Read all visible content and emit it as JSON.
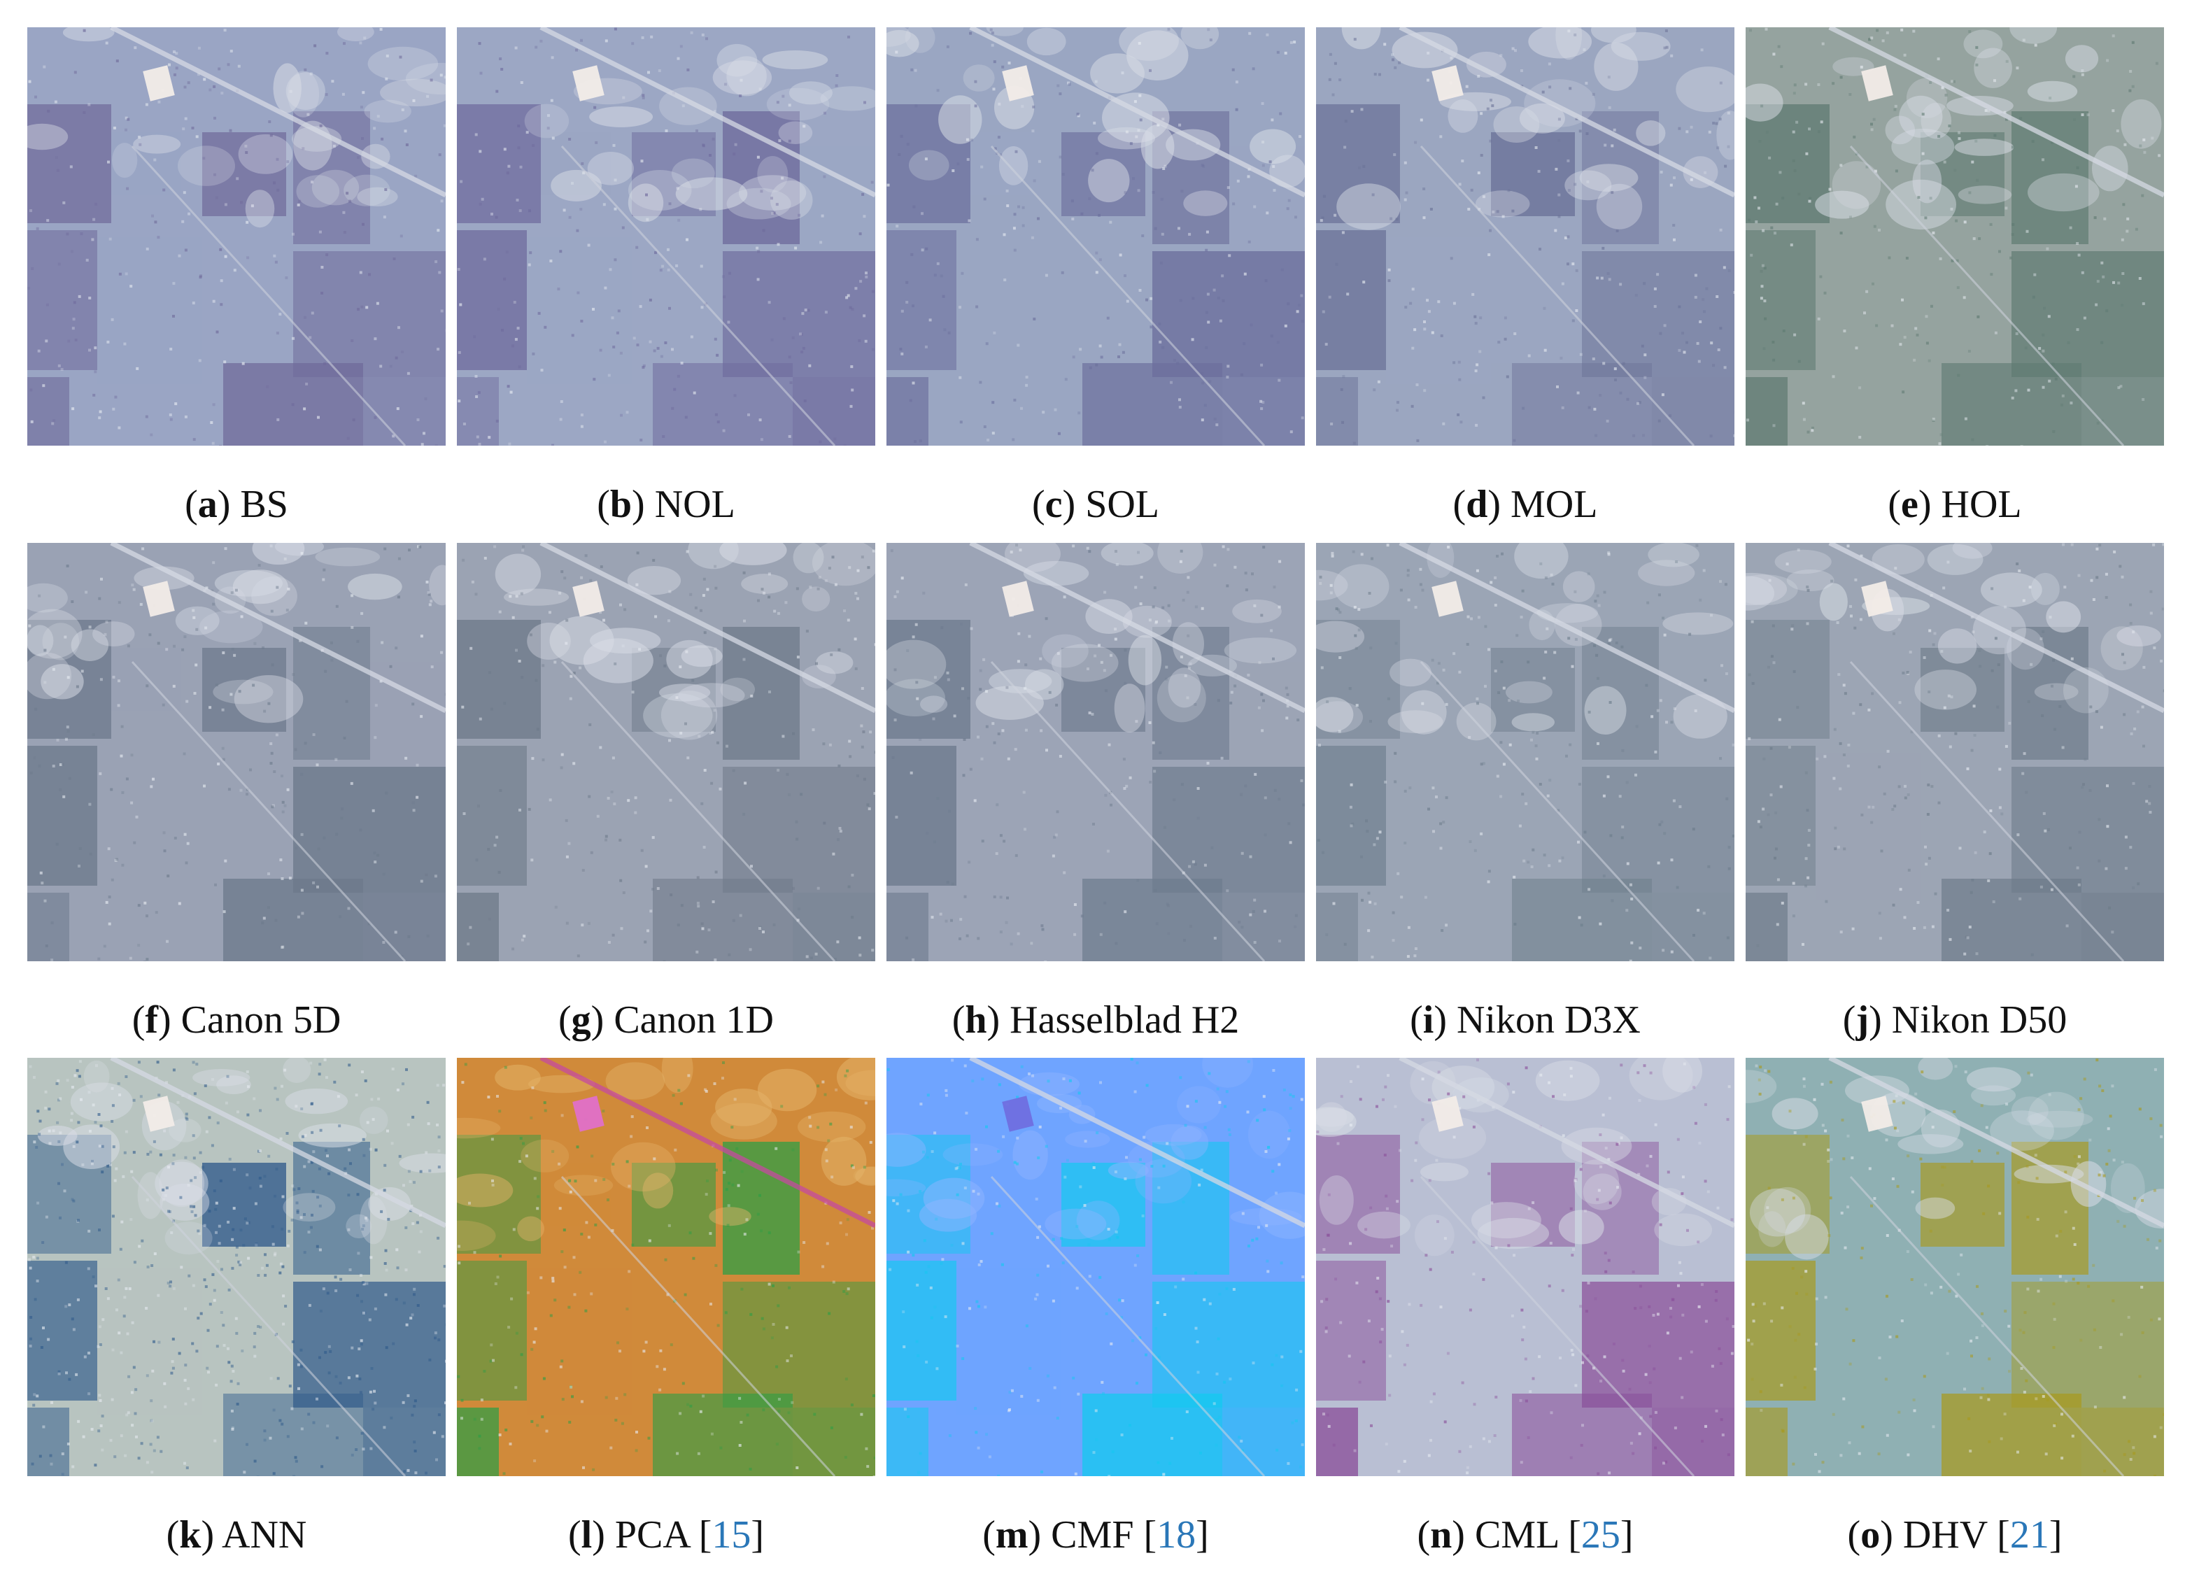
{
  "figure": {
    "panels": [
      {
        "letter": "a",
        "name": "BS",
        "ref": "",
        "tint": "#9aa5c4",
        "tint2": "#6f6a9a",
        "style": "natural"
      },
      {
        "letter": "b",
        "name": "NOL",
        "ref": "",
        "tint": "#9ca7c4",
        "tint2": "#6e6a9c",
        "style": "natural"
      },
      {
        "letter": "c",
        "name": "SOL",
        "ref": "",
        "tint": "#9aa6c2",
        "tint2": "#6b6f9c",
        "style": "natural"
      },
      {
        "letter": "d",
        "name": "MOL",
        "ref": "",
        "tint": "#9ba6c0",
        "tint2": "#6c7398",
        "style": "natural"
      },
      {
        "letter": "e",
        "name": "HOL",
        "ref": "",
        "tint": "#95a39f",
        "tint2": "#5f7a72",
        "style": "natural"
      },
      {
        "letter": "f",
        "name": "Canon 5D",
        "ref": "",
        "tint": "#9aa2b4",
        "tint2": "#6d7a8c",
        "style": "natural"
      },
      {
        "letter": "g",
        "name": "Canon 1D",
        "ref": "",
        "tint": "#9ba3b3",
        "tint2": "#6e7a8a",
        "style": "natural"
      },
      {
        "letter": "h",
        "name": "Hasselblad H2",
        "ref": "",
        "tint": "#9ca4b6",
        "tint2": "#6e7b8e",
        "style": "natural"
      },
      {
        "letter": "i",
        "name": "Nikon D3X",
        "ref": "",
        "tint": "#9ba5b5",
        "tint2": "#6c7c8b",
        "style": "natural"
      },
      {
        "letter": "j",
        "name": "Nikon D50",
        "ref": "",
        "tint": "#9ca5b4",
        "tint2": "#6d7b89",
        "style": "natural"
      },
      {
        "letter": "k",
        "name": "ANN",
        "ref": "",
        "tint": "#b8c4c0",
        "tint2": "#2f5a8a",
        "style": "ann"
      },
      {
        "letter": "l",
        "name": "PCA",
        "ref": "15",
        "tint": "#d08a3a",
        "tint2": "#2e9e45",
        "style": "pca"
      },
      {
        "letter": "m",
        "name": "CMF",
        "ref": "18",
        "tint": "#6fa4ff",
        "tint2": "#15c8f0",
        "style": "cmf"
      },
      {
        "letter": "n",
        "name": "CML",
        "ref": "25",
        "tint": "#b9bfd3",
        "tint2": "#8a4f9a",
        "style": "cml"
      },
      {
        "letter": "o",
        "name": "DHV",
        "ref": "21",
        "tint": "#8fb0b3",
        "tint2": "#a89a1e",
        "style": "dhv"
      }
    ]
  }
}
